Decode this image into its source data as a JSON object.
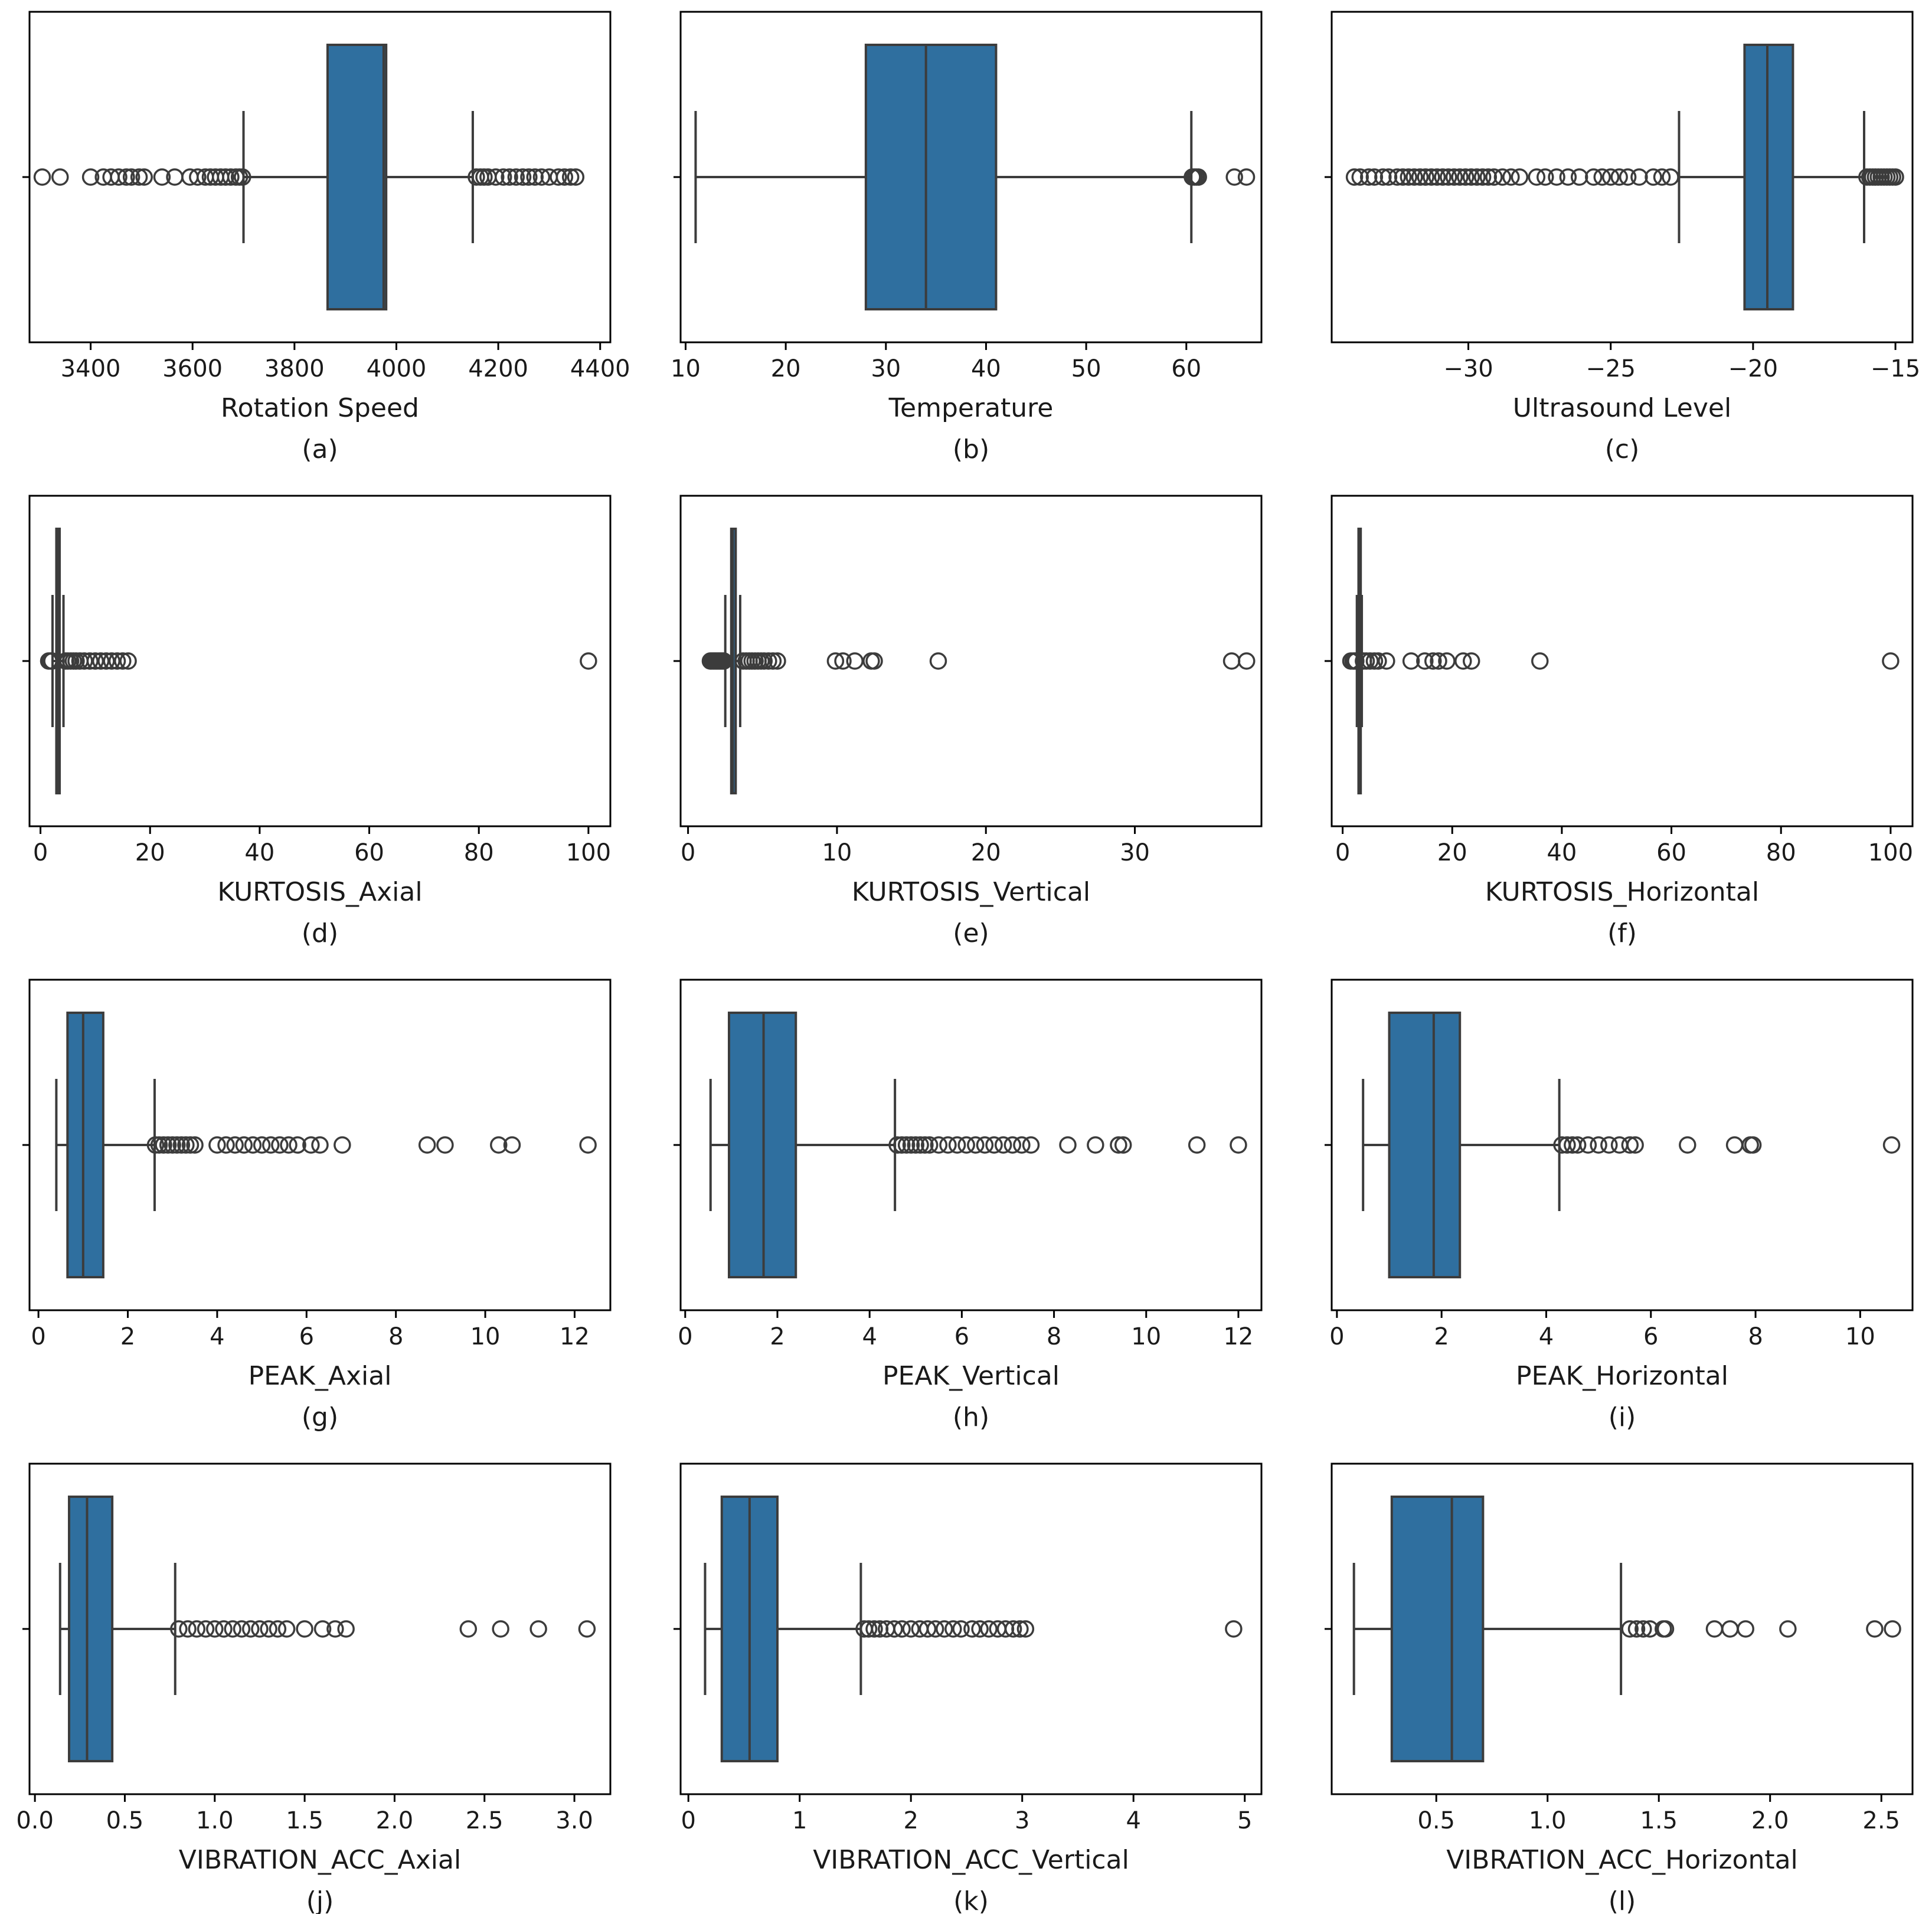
{
  "figure": {
    "box_color": "#2f6f9f",
    "line_color": "#3c3c3c"
  },
  "chart_data": [
    {
      "type": "boxplot",
      "panel": "(a)",
      "xlabel": "Rotation Speed",
      "xlim": [
        3280,
        4420
      ],
      "ticks": [
        3400,
        3600,
        3800,
        4000,
        4200,
        4400
      ],
      "tick_labels": [
        "3400",
        "3600",
        "3800",
        "4000",
        "4200",
        "4400"
      ],
      "whisker_low": 3700,
      "q1": 3865,
      "median": 3975,
      "q3": 3980,
      "whisker_high": 4150,
      "outliers": [
        3305,
        3340,
        3400,
        3425,
        3440,
        3455,
        3470,
        3480,
        3495,
        3505,
        3540,
        3565,
        3595,
        3610,
        3625,
        3635,
        3645,
        3655,
        3665,
        3675,
        3685,
        3692,
        3698,
        4157,
        4165,
        4172,
        4180,
        4195,
        4210,
        4222,
        4235,
        4248,
        4260,
        4272,
        4285,
        4300,
        4318,
        4330,
        4342,
        4352
      ]
    },
    {
      "type": "boxplot",
      "panel": "(b)",
      "xlabel": "Temperature",
      "xlim": [
        9.5,
        67.5
      ],
      "ticks": [
        10,
        20,
        30,
        40,
        50,
        60
      ],
      "tick_labels": [
        "10",
        "20",
        "30",
        "40",
        "50",
        "60"
      ],
      "whisker_low": 11,
      "q1": 28,
      "median": 34,
      "q3": 41,
      "whisker_high": 60.5,
      "outliers": [
        60.6,
        60.8,
        61,
        61.2,
        64.8,
        66
      ]
    },
    {
      "type": "boxplot",
      "panel": "(c)",
      "xlabel": "Ultrasound Level",
      "xlim": [
        -34.8,
        -14.4
      ],
      "ticks": [
        -30,
        -25,
        -20,
        -15
      ],
      "tick_labels": [
        "−30",
        "−25",
        "−20",
        "−15"
      ],
      "whisker_low": -22.6,
      "q1": -20.3,
      "median": -19.5,
      "q3": -18.6,
      "whisker_high": -16.1,
      "outliers": [
        -34,
        -33.8,
        -33.5,
        -33.3,
        -33,
        -32.8,
        -32.5,
        -32.3,
        -32.1,
        -31.9,
        -31.7,
        -31.5,
        -31.3,
        -31.1,
        -30.9,
        -30.7,
        -30.5,
        -30.3,
        -30.1,
        -29.9,
        -29.7,
        -29.5,
        -29.3,
        -29.1,
        -28.8,
        -28.5,
        -28.2,
        -27.6,
        -27.3,
        -26.9,
        -26.5,
        -26.1,
        -25.6,
        -25.3,
        -25,
        -24.7,
        -24.4,
        -24,
        -23.5,
        -23.2,
        -22.9,
        -16,
        -15.9,
        -15.8,
        -15.7,
        -15.6,
        -15.5,
        -15.4,
        -15.3,
        -15.2,
        -15.1,
        -15
      ]
    },
    {
      "type": "boxplot",
      "panel": "(d)",
      "xlabel": "KURTOSIS_Axial",
      "xlim": [
        -2,
        104
      ],
      "ticks": [
        0,
        20,
        40,
        60,
        80,
        100
      ],
      "tick_labels": [
        "0",
        "20",
        "40",
        "60",
        "80",
        "100"
      ],
      "whisker_low": 2.2,
      "q1": 2.9,
      "median": 3.1,
      "q3": 3.5,
      "whisker_high": 4.2,
      "outliers": [
        1.5,
        1.8,
        2,
        2.1,
        4.6,
        5,
        5.5,
        6,
        6.5,
        7.2,
        8,
        9,
        10,
        11,
        12,
        13,
        14,
        15,
        16,
        100
      ]
    },
    {
      "type": "boxplot",
      "panel": "(e)",
      "xlabel": "KURTOSIS_Vertical",
      "xlim": [
        -0.5,
        38.5
      ],
      "ticks": [
        0,
        10,
        20,
        30
      ],
      "tick_labels": [
        "0",
        "10",
        "20",
        "30"
      ],
      "whisker_low": 2.5,
      "q1": 2.9,
      "median": 3,
      "q3": 3.2,
      "whisker_high": 3.5,
      "outliers": [
        1.5,
        1.6,
        1.7,
        1.8,
        1.9,
        2,
        2.1,
        2.2,
        2.3,
        2.4,
        3.7,
        3.9,
        4.1,
        4.3,
        4.5,
        4.7,
        4.9,
        5.1,
        5.4,
        5.7,
        6,
        9.9,
        10.4,
        11.2,
        12.3,
        12.5,
        16.8,
        36.5,
        37.5
      ]
    },
    {
      "type": "boxplot",
      "panel": "(f)",
      "xlabel": "KURTOSIS_Horizontal",
      "xlim": [
        -2,
        104
      ],
      "ticks": [
        0,
        20,
        40,
        60,
        80,
        100
      ],
      "tick_labels": [
        "0",
        "20",
        "40",
        "60",
        "80",
        "100"
      ],
      "whisker_low": 2.6,
      "q1": 2.9,
      "median": 3.1,
      "q3": 3.3,
      "whisker_high": 3.5,
      "outliers": [
        1.5,
        1.9,
        2.2,
        2.4,
        3.8,
        4.3,
        5,
        5.8,
        6.5,
        8,
        12.5,
        15,
        16.5,
        17.5,
        19,
        22,
        23.5,
        36,
        100
      ]
    },
    {
      "type": "boxplot",
      "panel": "(g)",
      "xlabel": "PEAK_Axial",
      "xlim": [
        -0.2,
        12.8
      ],
      "ticks": [
        0,
        2,
        4,
        6,
        8,
        10,
        12
      ],
      "tick_labels": [
        "0",
        "2",
        "4",
        "6",
        "8",
        "10",
        "12"
      ],
      "whisker_low": 0.4,
      "q1": 0.65,
      "median": 1,
      "q3": 1.45,
      "whisker_high": 2.6,
      "outliers": [
        2.62,
        2.7,
        2.8,
        2.9,
        3,
        3.1,
        3.2,
        3.3,
        3.4,
        3.5,
        4,
        4.2,
        4.4,
        4.6,
        4.8,
        5,
        5.2,
        5.4,
        5.6,
        5.8,
        6.1,
        6.3,
        6.8,
        8.7,
        9.1,
        10.3,
        10.6,
        12.3
      ]
    },
    {
      "type": "boxplot",
      "panel": "(h)",
      "xlabel": "PEAK_Vertical",
      "xlim": [
        -0.1,
        12.5
      ],
      "ticks": [
        0,
        2,
        4,
        6,
        8,
        10,
        12
      ],
      "tick_labels": [
        "0",
        "2",
        "4",
        "6",
        "8",
        "10",
        "12"
      ],
      "whisker_low": 0.55,
      "q1": 0.95,
      "median": 1.7,
      "q3": 2.4,
      "whisker_high": 4.55,
      "outliers": [
        4.6,
        4.7,
        4.8,
        4.9,
        5,
        5.1,
        5.2,
        5.3,
        5.5,
        5.7,
        5.9,
        6.1,
        6.3,
        6.5,
        6.7,
        6.9,
        7.1,
        7.3,
        7.5,
        8.3,
        8.9,
        9.4,
        9.5,
        11.1,
        12
      ]
    },
    {
      "type": "boxplot",
      "panel": "(i)",
      "xlabel": "PEAK_Horizontal",
      "xlim": [
        -0.1,
        11
      ],
      "ticks": [
        0,
        2,
        4,
        6,
        8,
        10
      ],
      "tick_labels": [
        "0",
        "2",
        "4",
        "6",
        "8",
        "10"
      ],
      "whisker_low": 0.5,
      "q1": 1,
      "median": 1.85,
      "q3": 2.35,
      "whisker_high": 4.25,
      "outliers": [
        4.3,
        4.4,
        4.5,
        4.6,
        4.8,
        5,
        5.2,
        5.4,
        5.6,
        5.7,
        6.7,
        7.6,
        7.9,
        7.95,
        10.6
      ]
    },
    {
      "type": "boxplot",
      "panel": "(j)",
      "xlabel": "VIBRATION_ACC_Axial",
      "xlim": [
        -0.03,
        3.2
      ],
      "ticks": [
        0,
        0.5,
        1,
        1.5,
        2,
        2.5,
        3
      ],
      "tick_labels": [
        "0.0",
        "0.5",
        "1.0",
        "1.5",
        "2.0",
        "2.5",
        "3.0"
      ],
      "whisker_low": 0.14,
      "q1": 0.19,
      "median": 0.29,
      "q3": 0.43,
      "whisker_high": 0.78,
      "outliers": [
        0.8,
        0.85,
        0.9,
        0.95,
        1,
        1.05,
        1.1,
        1.15,
        1.2,
        1.25,
        1.3,
        1.35,
        1.4,
        1.5,
        1.6,
        1.67,
        1.73,
        2.41,
        2.59,
        2.8,
        3.07
      ]
    },
    {
      "type": "boxplot",
      "panel": "(k)",
      "xlabel": "VIBRATION_ACC_Vertical",
      "xlim": [
        -0.07,
        5.15
      ],
      "ticks": [
        0,
        1,
        2,
        3,
        4,
        5
      ],
      "tick_labels": [
        "0",
        "1",
        "2",
        "3",
        "4",
        "5"
      ],
      "whisker_low": 0.15,
      "q1": 0.3,
      "median": 0.55,
      "q3": 0.8,
      "whisker_high": 1.55,
      "outliers": [
        1.58,
        1.62,
        1.67,
        1.72,
        1.78,
        1.85,
        1.92,
        2,
        2.08,
        2.15,
        2.22,
        2.3,
        2.38,
        2.45,
        2.55,
        2.62,
        2.7,
        2.78,
        2.85,
        2.92,
        2.98,
        3.03,
        4.9
      ]
    },
    {
      "type": "boxplot",
      "panel": "(l)",
      "xlabel": "VIBRATION_ACC_Horizontal",
      "xlim": [
        0.03,
        2.64
      ],
      "ticks": [
        0.5,
        1,
        1.5,
        2,
        2.5
      ],
      "tick_labels": [
        "0.5",
        "1.0",
        "1.5",
        "2.0",
        "2.5"
      ],
      "whisker_low": 0.13,
      "q1": 0.3,
      "median": 0.57,
      "q3": 0.71,
      "whisker_high": 1.33,
      "outliers": [
        1.37,
        1.4,
        1.43,
        1.46,
        1.52,
        1.53,
        1.75,
        1.82,
        1.89,
        2.08,
        2.47,
        2.55
      ]
    }
  ]
}
